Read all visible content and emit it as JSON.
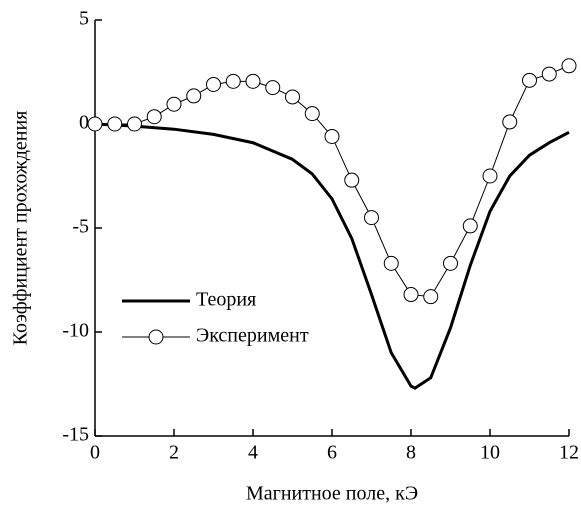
{
  "chart_data": {
    "type": "line",
    "x_label": "Магнитное поле, кЭ",
    "y_label": "Коэффициент прохождения",
    "xlim": [
      0,
      12
    ],
    "xticks": [
      0,
      2,
      4,
      6,
      8,
      10,
      12
    ],
    "ylim": [
      -15,
      5
    ],
    "yticks": [
      -15,
      -10,
      -5,
      0,
      5
    ],
    "legend": "lower left",
    "series": [
      {
        "name": "Теория",
        "color": "#000000",
        "marker": "none",
        "x": [
          0,
          1,
          2,
          3,
          4,
          5,
          5.5,
          6,
          6.5,
          7,
          7.5,
          8,
          8.1,
          8.5,
          9,
          9.5,
          10,
          10.5,
          11,
          11.5,
          12
        ],
        "values": [
          0,
          -0.1,
          -0.25,
          -0.5,
          -0.9,
          -1.7,
          -2.4,
          -3.6,
          -5.5,
          -8.2,
          -11.0,
          -12.6,
          -12.7,
          -12.2,
          -9.8,
          -6.8,
          -4.2,
          -2.5,
          -1.5,
          -0.9,
          -0.4
        ]
      },
      {
        "name": "Эксперимент",
        "color": "#000000",
        "marker": "circle",
        "x": [
          0,
          0.5,
          1,
          1.5,
          2,
          2.5,
          3,
          3.5,
          4,
          4.5,
          5,
          5.5,
          6,
          6.5,
          7,
          7.5,
          8,
          8.5,
          9,
          9.5,
          10,
          10.5,
          11,
          11.5,
          12
        ],
        "values": [
          0,
          0,
          0,
          0.35,
          0.95,
          1.35,
          1.9,
          2.05,
          2.05,
          1.75,
          1.3,
          0.5,
          -0.6,
          -2.7,
          -4.5,
          -6.7,
          -8.2,
          -8.3,
          -6.7,
          -4.9,
          -2.5,
          0.1,
          2.1,
          2.4,
          2.8
        ]
      }
    ]
  }
}
